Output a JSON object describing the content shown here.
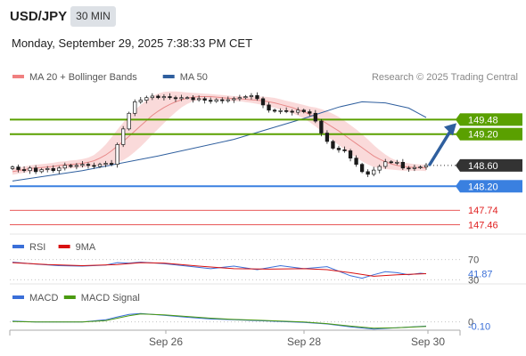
{
  "header": {
    "symbol": "USD/JPY",
    "timeframe": "30 MIN",
    "datetime": "Monday, September 29, 2025 7:38:33 PM CET"
  },
  "chart_data": [
    {
      "type": "candlestick",
      "legend": [
        {
          "label": "MA 20 + Bollinger Bands",
          "color": "#f08080"
        },
        {
          "label": "MA 50",
          "color": "#2f5f9e"
        }
      ],
      "credit": "Research © 2025 Trading Central",
      "ylim": [
        147.3,
        150.1
      ],
      "x_ticks": [
        "Sep 26",
        "Sep 28",
        "Sep 30"
      ],
      "closes": [
        148.57,
        148.52,
        148.5,
        148.55,
        148.48,
        148.52,
        148.54,
        148.5,
        148.55,
        148.6,
        148.58,
        148.6,
        148.62,
        148.6,
        148.58,
        148.62,
        148.64,
        148.62,
        149.0,
        149.3,
        149.6,
        149.82,
        149.85,
        149.9,
        149.93,
        149.9,
        149.92,
        149.9,
        149.88,
        149.9,
        149.9,
        149.86,
        149.88,
        149.85,
        149.83,
        149.86,
        149.84,
        149.86,
        149.88,
        149.9,
        149.92,
        149.94,
        149.88,
        149.76,
        149.66,
        149.64,
        149.65,
        149.64,
        149.62,
        149.66,
        149.63,
        149.6,
        149.45,
        149.22,
        149.06,
        148.93,
        148.9,
        148.88,
        148.74,
        148.62,
        148.48,
        148.43,
        148.51,
        148.58,
        148.67,
        148.66,
        148.66,
        148.55,
        148.54,
        148.56,
        148.57,
        148.6
      ],
      "ma20": [
        148.48,
        148.5,
        148.52,
        148.54,
        148.55,
        148.56,
        148.57,
        148.58,
        148.6,
        148.61,
        148.62,
        148.63,
        148.64,
        148.66,
        148.69,
        148.74,
        148.8,
        148.88,
        148.97,
        149.06,
        149.16,
        149.26,
        149.36,
        149.46,
        149.56,
        149.64,
        149.71,
        149.77,
        149.82,
        149.86,
        149.89,
        149.91,
        149.92,
        149.92,
        149.92,
        149.91,
        149.9,
        149.89,
        149.88,
        149.88,
        149.87,
        149.86,
        149.85,
        149.84,
        149.82,
        149.8,
        149.77,
        149.74,
        149.71,
        149.67,
        149.63,
        149.58,
        149.53,
        149.47,
        149.4,
        149.33,
        149.26,
        149.18,
        149.1,
        149.02,
        148.94,
        148.86,
        148.78,
        148.72,
        148.67,
        148.63,
        148.6,
        148.58,
        148.57,
        148.56,
        148.56,
        148.55
      ],
      "bb_width": [
        0.12,
        0.12,
        0.12,
        0.12,
        0.13,
        0.13,
        0.13,
        0.14,
        0.14,
        0.14,
        0.15,
        0.15,
        0.16,
        0.18,
        0.22,
        0.3,
        0.4,
        0.52,
        0.63,
        0.72,
        0.78,
        0.8,
        0.8,
        0.78,
        0.74,
        0.68,
        0.6,
        0.5,
        0.4,
        0.3,
        0.22,
        0.16,
        0.13,
        0.11,
        0.1,
        0.1,
        0.1,
        0.1,
        0.1,
        0.1,
        0.11,
        0.12,
        0.14,
        0.16,
        0.18,
        0.19,
        0.2,
        0.2,
        0.21,
        0.23,
        0.26,
        0.3,
        0.36,
        0.42,
        0.48,
        0.52,
        0.54,
        0.55,
        0.55,
        0.54,
        0.52,
        0.48,
        0.42,
        0.35,
        0.28,
        0.22,
        0.18,
        0.16,
        0.14,
        0.13,
        0.12,
        0.12
      ],
      "ma50": {
        "from": 0,
        "x": [
          0,
          12,
          25,
          38,
          50,
          56,
          60,
          64,
          68,
          71
        ],
        "values": [
          148.3,
          148.5,
          148.78,
          149.1,
          149.5,
          149.72,
          149.82,
          149.8,
          149.7,
          149.52
        ]
      },
      "forecast_arrow": {
        "from": 148.6,
        "to": 149.48
      },
      "levels": [
        {
          "value": 149.48,
          "label": "149.48",
          "color": "#5aa000"
        },
        {
          "value": 149.2,
          "label": "149.20",
          "color": "#5aa000"
        },
        {
          "value": 148.6,
          "label": "148.60",
          "color": "#333333"
        },
        {
          "value": 148.2,
          "label": "148.20",
          "color": "#3a80e0"
        },
        {
          "value": 147.74,
          "label": "147.74",
          "color": "#e02020"
        },
        {
          "value": 147.46,
          "label": "147.46",
          "color": "#e02020"
        }
      ]
    },
    {
      "type": "line",
      "legend": [
        {
          "label": "RSI",
          "color": "#3a6fd8"
        },
        {
          "label": "9MA",
          "color": "#d81010"
        }
      ],
      "ylim": [
        20,
        80
      ],
      "levels": [
        70,
        30
      ],
      "labels": [
        {
          "value": 70,
          "label": "70"
        },
        {
          "value": 41.87,
          "label": "41.87"
        },
        {
          "value": 30,
          "label": "30"
        }
      ],
      "series": [
        {
          "name": "RSI",
          "x": [
            0,
            4,
            8,
            12,
            16,
            18,
            20,
            22,
            26,
            30,
            34,
            38,
            42,
            46,
            50,
            54,
            58,
            60,
            62,
            64,
            66,
            68,
            70,
            71
          ],
          "values": [
            65,
            61,
            58,
            57,
            59,
            64,
            63,
            65,
            62,
            57,
            52,
            57,
            50,
            58,
            52,
            56,
            38,
            33,
            40,
            46,
            44,
            40,
            43,
            41.87
          ]
        },
        {
          "name": "9MA",
          "x": [
            0,
            6,
            12,
            18,
            22,
            26,
            32,
            38,
            44,
            50,
            54,
            58,
            62,
            66,
            71
          ],
          "values": [
            64,
            60,
            58,
            60,
            64,
            63,
            57,
            52,
            51,
            52,
            50,
            44,
            37,
            40,
            42
          ]
        }
      ]
    },
    {
      "type": "line",
      "legend": [
        {
          "label": "MACD",
          "color": "#3a6fd8"
        },
        {
          "label": "MACD Signal",
          "color": "#4a9a10"
        }
      ],
      "ylim": [
        -0.22,
        0.42
      ],
      "labels": [
        {
          "value": 0,
          "label": "0"
        },
        {
          "value": -0.1,
          "label": "-0.10"
        }
      ],
      "series": [
        {
          "name": "MACD",
          "x": [
            0,
            4,
            8,
            12,
            16,
            18,
            20,
            22,
            26,
            30,
            34,
            38,
            42,
            46,
            50,
            54,
            58,
            62,
            66,
            71
          ],
          "values": [
            0.02,
            0.0,
            0.0,
            0.0,
            0.05,
            0.12,
            0.18,
            0.2,
            0.16,
            0.11,
            0.07,
            0.05,
            0.03,
            0.01,
            -0.01,
            -0.05,
            -0.12,
            -0.17,
            -0.14,
            -0.1
          ]
        },
        {
          "name": "MACD Signal",
          "x": [
            0,
            4,
            8,
            12,
            16,
            18,
            20,
            22,
            26,
            30,
            34,
            38,
            42,
            46,
            50,
            54,
            58,
            62,
            66,
            71
          ],
          "values": [
            0.01,
            0.0,
            0.0,
            0.0,
            0.03,
            0.09,
            0.15,
            0.19,
            0.17,
            0.13,
            0.09,
            0.06,
            0.04,
            0.02,
            0.0,
            -0.04,
            -0.1,
            -0.15,
            -0.14,
            -0.11
          ]
        }
      ]
    }
  ]
}
